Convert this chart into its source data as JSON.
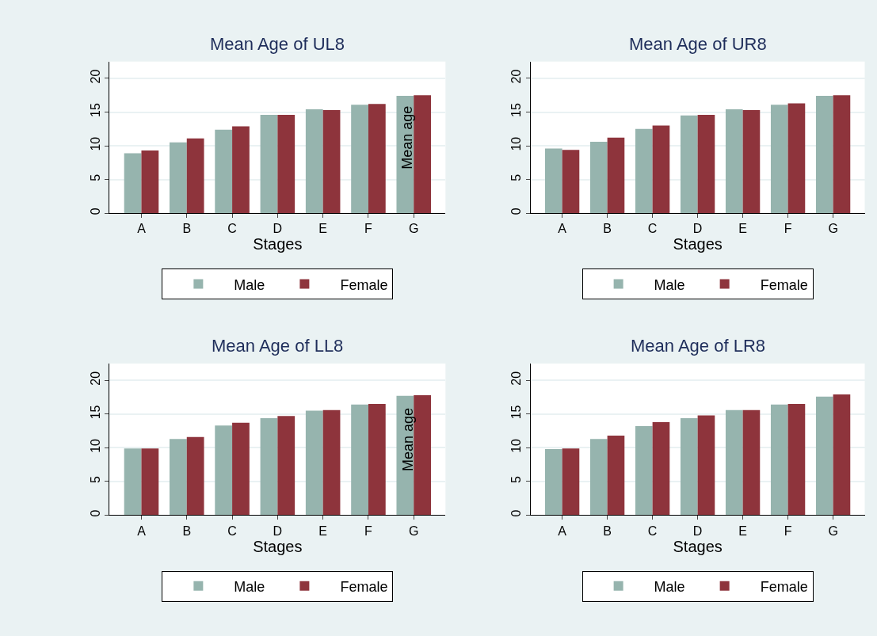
{
  "chart_data": [
    {
      "type": "bar",
      "title": "Mean Age of UL8",
      "xlabel": "Stages",
      "categories": [
        "A",
        "B",
        "C",
        "D",
        "E",
        "F",
        "G"
      ],
      "ylim": [
        0,
        22.5
      ],
      "yticks": [
        0,
        5,
        10,
        15,
        20
      ],
      "grid": "y",
      "legend": "bottom",
      "annotations": [
        "Mean age"
      ],
      "series": [
        {
          "name": "Male",
          "color": "#96b4ae",
          "values": [
            8.9,
            10.5,
            12.4,
            14.6,
            15.4,
            16.1,
            17.4
          ]
        },
        {
          "name": "Female",
          "color": "#8e343c",
          "values": [
            9.3,
            11.1,
            12.9,
            14.6,
            15.3,
            16.2,
            17.5
          ]
        }
      ]
    },
    {
      "type": "bar",
      "title": "Mean Age of UR8",
      "xlabel": "Stages",
      "categories": [
        "A",
        "B",
        "C",
        "D",
        "E",
        "F",
        "G"
      ],
      "ylim": [
        0,
        22.5
      ],
      "yticks": [
        0,
        5,
        10,
        15,
        20
      ],
      "grid": "y",
      "legend": "bottom",
      "series": [
        {
          "name": "Male",
          "color": "#96b4ae",
          "values": [
            9.6,
            10.6,
            12.5,
            14.5,
            15.4,
            16.1,
            17.4
          ]
        },
        {
          "name": "Female",
          "color": "#8e343c",
          "values": [
            9.4,
            11.2,
            13.0,
            14.6,
            15.3,
            16.3,
            17.5
          ]
        }
      ]
    },
    {
      "type": "bar",
      "title": "Mean Age of LL8",
      "xlabel": "Stages",
      "categories": [
        "A",
        "B",
        "C",
        "D",
        "E",
        "F",
        "G"
      ],
      "ylim": [
        0,
        22.5
      ],
      "yticks": [
        0,
        5,
        10,
        15,
        20
      ],
      "grid": "y",
      "legend": "bottom",
      "annotations": [
        "Mean age"
      ],
      "series": [
        {
          "name": "Male",
          "color": "#96b4ae",
          "values": [
            9.9,
            11.3,
            13.3,
            14.4,
            15.5,
            16.4,
            17.7
          ]
        },
        {
          "name": "Female",
          "color": "#8e343c",
          "values": [
            9.9,
            11.6,
            13.7,
            14.7,
            15.6,
            16.5,
            17.8
          ]
        }
      ]
    },
    {
      "type": "bar",
      "title": "Mean Age of LR8",
      "xlabel": "Stages",
      "categories": [
        "A",
        "B",
        "C",
        "D",
        "E",
        "F",
        "G"
      ],
      "ylim": [
        0,
        22.5
      ],
      "yticks": [
        0,
        5,
        10,
        15,
        20
      ],
      "grid": "y",
      "legend": "bottom",
      "series": [
        {
          "name": "Male",
          "color": "#96b4ae",
          "values": [
            9.8,
            11.3,
            13.2,
            14.4,
            15.6,
            16.4,
            17.6
          ]
        },
        {
          "name": "Female",
          "color": "#8e343c",
          "values": [
            9.9,
            11.8,
            13.8,
            14.8,
            15.6,
            16.5,
            17.9
          ]
        }
      ]
    }
  ]
}
